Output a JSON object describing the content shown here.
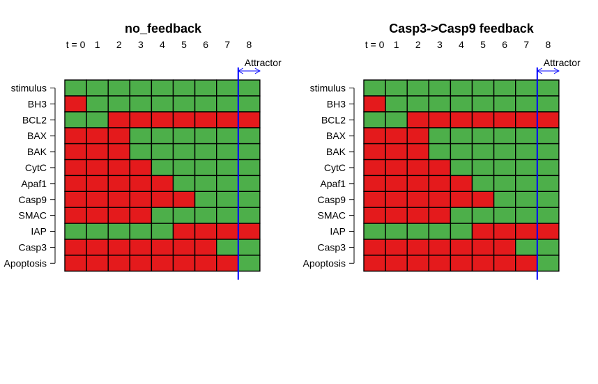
{
  "colors": {
    "active": "#4daf4a",
    "inactive": "#e41a1c",
    "attractor": "#0000ff"
  },
  "chart_data": [
    {
      "type": "heatmap",
      "title": "no_feedback",
      "time_labels": [
        "t = 0",
        "1",
        "2",
        "3",
        "4",
        "5",
        "6",
        "7",
        "8"
      ],
      "genes": [
        "stimulus",
        "BH3",
        "BCL2",
        "BAX",
        "BAK",
        "CytC",
        "Apaf1",
        "Casp9",
        "SMAC",
        "IAP",
        "Casp3",
        "Apoptosis"
      ],
      "states": [
        [
          1,
          1,
          1,
          1,
          1,
          1,
          1,
          1,
          1
        ],
        [
          0,
          1,
          1,
          1,
          1,
          1,
          1,
          1,
          1
        ],
        [
          1,
          1,
          0,
          0,
          0,
          0,
          0,
          0,
          0
        ],
        [
          0,
          0,
          0,
          1,
          1,
          1,
          1,
          1,
          1
        ],
        [
          0,
          0,
          0,
          1,
          1,
          1,
          1,
          1,
          1
        ],
        [
          0,
          0,
          0,
          0,
          1,
          1,
          1,
          1,
          1
        ],
        [
          0,
          0,
          0,
          0,
          0,
          1,
          1,
          1,
          1
        ],
        [
          0,
          0,
          0,
          0,
          0,
          0,
          1,
          1,
          1
        ],
        [
          0,
          0,
          0,
          0,
          1,
          1,
          1,
          1,
          1
        ],
        [
          1,
          1,
          1,
          1,
          1,
          0,
          0,
          0,
          0
        ],
        [
          0,
          0,
          0,
          0,
          0,
          0,
          0,
          1,
          1
        ],
        [
          0,
          0,
          0,
          0,
          0,
          0,
          0,
          0,
          1
        ]
      ],
      "attractor_label": "Attractor",
      "attractor_start": 8
    },
    {
      "type": "heatmap",
      "title": "Casp3->Casp9 feedback",
      "time_labels": [
        "t = 0",
        "1",
        "2",
        "3",
        "4",
        "5",
        "6",
        "7",
        "8"
      ],
      "genes": [
        "stimulus",
        "BH3",
        "BCL2",
        "BAX",
        "BAK",
        "CytC",
        "Apaf1",
        "Casp9",
        "SMAC",
        "IAP",
        "Casp3",
        "Apoptosis"
      ],
      "states": [
        [
          1,
          1,
          1,
          1,
          1,
          1,
          1,
          1,
          1
        ],
        [
          0,
          1,
          1,
          1,
          1,
          1,
          1,
          1,
          1
        ],
        [
          1,
          1,
          0,
          0,
          0,
          0,
          0,
          0,
          0
        ],
        [
          0,
          0,
          0,
          1,
          1,
          1,
          1,
          1,
          1
        ],
        [
          0,
          0,
          0,
          1,
          1,
          1,
          1,
          1,
          1
        ],
        [
          0,
          0,
          0,
          0,
          1,
          1,
          1,
          1,
          1
        ],
        [
          0,
          0,
          0,
          0,
          0,
          1,
          1,
          1,
          1
        ],
        [
          0,
          0,
          0,
          0,
          0,
          0,
          1,
          1,
          1
        ],
        [
          0,
          0,
          0,
          0,
          1,
          1,
          1,
          1,
          1
        ],
        [
          1,
          1,
          1,
          1,
          1,
          0,
          0,
          0,
          0
        ],
        [
          0,
          0,
          0,
          0,
          0,
          0,
          0,
          1,
          1
        ],
        [
          0,
          0,
          0,
          0,
          0,
          0,
          0,
          0,
          1
        ]
      ],
      "attractor_label": "Attractor",
      "attractor_start": 8
    }
  ]
}
